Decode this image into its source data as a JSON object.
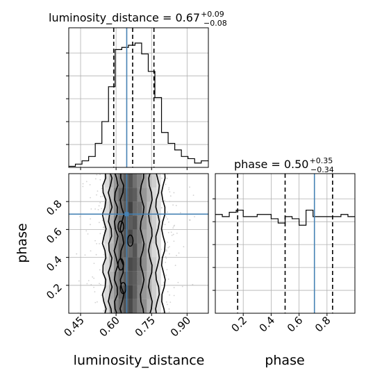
{
  "chart_data": [
    {
      "panel": "marginal_luminosity_distance",
      "type": "histogram",
      "title": {
        "param": "luminosity_distance",
        "median": "0.67",
        "plus": "+0.09",
        "minus": "−0.08"
      },
      "x_range": [
        0.4,
        0.99
      ],
      "bin_edges": [
        0.4,
        0.428,
        0.456,
        0.484,
        0.512,
        0.54,
        0.568,
        0.596,
        0.624,
        0.652,
        0.68,
        0.708,
        0.736,
        0.764,
        0.792,
        0.82,
        0.848,
        0.876,
        0.904,
        0.932,
        0.96,
        0.99
      ],
      "counts": [
        0.5,
        1.5,
        3,
        5,
        11,
        21,
        37,
        54,
        55,
        56,
        57,
        52,
        44,
        32,
        16,
        11,
        8,
        5,
        4,
        2,
        3
      ],
      "y_max": 64,
      "quantile_lines": [
        0.59,
        0.67,
        0.76
      ],
      "truth": 0.645,
      "grid": true
    },
    {
      "panel": "marginal_phase",
      "type": "histogram",
      "title": {
        "param": "phase",
        "median": "0.50",
        "plus": "+0.35",
        "minus": "−0.34"
      },
      "x_range": [
        0.0,
        1.0
      ],
      "bin_edges": [
        0.0,
        0.05,
        0.1,
        0.15,
        0.2,
        0.25,
        0.3,
        0.35,
        0.4,
        0.45,
        0.5,
        0.55,
        0.6,
        0.65,
        0.7,
        0.75,
        0.8,
        0.85,
        0.9,
        0.95,
        1.0
      ],
      "counts": [
        46,
        45,
        47,
        48,
        45,
        45,
        46,
        46,
        44,
        42,
        45,
        44,
        41,
        48,
        45,
        45,
        45,
        45,
        46,
        45
      ],
      "y_max": 65,
      "quantile_lines": [
        0.16,
        0.5,
        0.84
      ],
      "truth": 0.71,
      "grid": true
    },
    {
      "panel": "joint_luminosity_distance_phase",
      "type": "heatmap",
      "x_range": [
        0.4,
        0.99
      ],
      "y_range": [
        0.0,
        1.0
      ],
      "truth": {
        "x": 0.645,
        "y": 0.71
      },
      "grid": true,
      "x_cells": [
        0.56,
        0.58,
        0.6,
        0.62,
        0.64,
        0.66,
        0.68,
        0.7,
        0.72,
        0.74,
        0.76,
        0.78
      ],
      "y_cells": [
        0.05,
        0.15,
        0.25,
        0.35,
        0.45,
        0.55,
        0.65,
        0.75,
        0.85,
        0.95
      ],
      "intensity": [
        [
          0.15,
          0.35,
          0.6,
          0.7,
          0.85,
          0.9,
          0.75,
          0.6,
          0.55,
          0.35,
          0.2,
          0.1
        ],
        [
          0.15,
          0.4,
          0.55,
          0.75,
          0.9,
          0.95,
          0.8,
          0.6,
          0.5,
          0.4,
          0.2,
          0.1
        ],
        [
          0.1,
          0.35,
          0.6,
          0.7,
          0.8,
          0.85,
          0.8,
          0.65,
          0.5,
          0.35,
          0.2,
          0.1
        ],
        [
          0.15,
          0.3,
          0.55,
          0.8,
          0.7,
          0.9,
          0.85,
          0.7,
          0.55,
          0.35,
          0.2,
          0.1
        ],
        [
          0.1,
          0.35,
          0.55,
          0.75,
          0.8,
          0.75,
          0.85,
          0.6,
          0.55,
          0.3,
          0.15,
          0.1
        ],
        [
          0.15,
          0.3,
          0.55,
          0.7,
          0.85,
          0.9,
          0.75,
          0.65,
          0.45,
          0.35,
          0.2,
          0.1
        ],
        [
          0.1,
          0.35,
          0.6,
          0.75,
          0.9,
          0.8,
          0.85,
          0.6,
          0.5,
          0.35,
          0.2,
          0.1
        ],
        [
          0.15,
          0.35,
          0.55,
          0.7,
          0.8,
          0.95,
          0.75,
          0.7,
          0.5,
          0.3,
          0.2,
          0.1
        ],
        [
          0.1,
          0.3,
          0.6,
          0.75,
          0.85,
          0.85,
          0.8,
          0.6,
          0.5,
          0.35,
          0.15,
          0.1
        ],
        [
          0.15,
          0.35,
          0.5,
          0.65,
          0.8,
          0.85,
          0.7,
          0.6,
          0.45,
          0.3,
          0.2,
          0.1
        ]
      ],
      "contour_x_bounds": [
        [
          0.55,
          0.8
        ],
        [
          0.575,
          0.775
        ],
        [
          0.6,
          0.745
        ],
        [
          0.625,
          0.71
        ]
      ]
    }
  ],
  "axes": {
    "x_dist": {
      "label": "luminosity_distance",
      "ticks": [
        0.45,
        0.6,
        0.75,
        0.9
      ],
      "tick_labels": [
        "0.45",
        "0.60",
        "0.75",
        "0.90"
      ]
    },
    "x_phase": {
      "label": "phase",
      "ticks": [
        0.2,
        0.4,
        0.6,
        0.8
      ],
      "tick_labels": [
        "0.2",
        "0.4",
        "0.6",
        "0.8"
      ]
    },
    "y_phase": {
      "label": "phase",
      "ticks": [
        0.2,
        0.4,
        0.6,
        0.8
      ],
      "tick_labels": [
        "0.2",
        "0.4",
        "0.6",
        "0.8"
      ]
    }
  },
  "colors": {
    "truth": "#4682b4",
    "hist": "#000000",
    "grid": "#b0b0b0",
    "scatter": "#bdbdbd"
  }
}
